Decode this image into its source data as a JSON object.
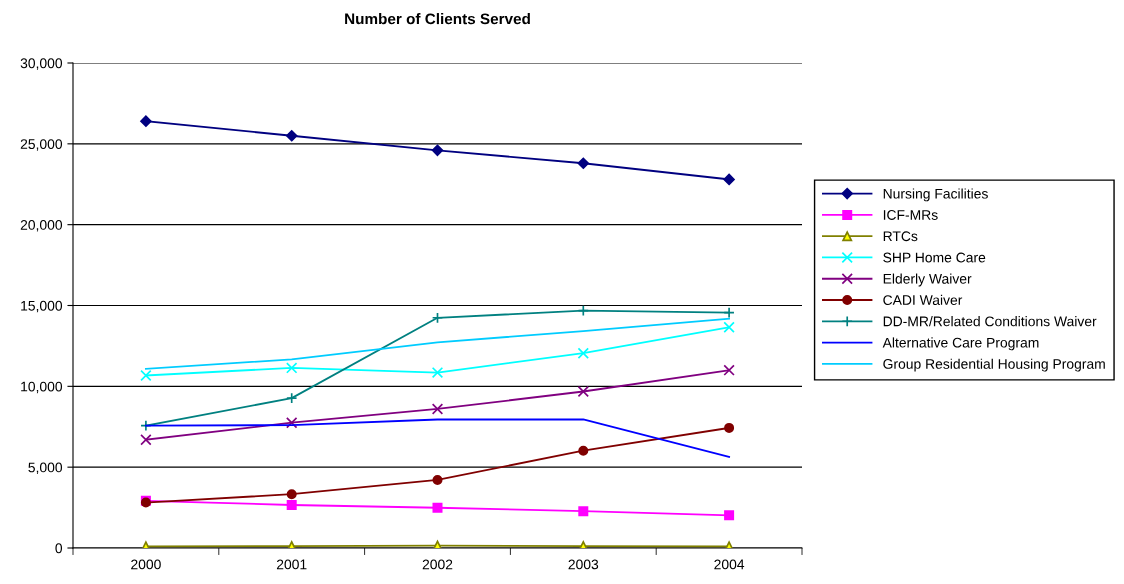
{
  "chart_data": {
    "type": "line",
    "title": "Number of Clients Served",
    "categories": [
      "2000",
      "2001",
      "2002",
      "2003",
      "2004"
    ],
    "ylim": [
      0,
      30000
    ],
    "yticks": [
      {
        "value": 0,
        "label": "0"
      },
      {
        "value": 5000,
        "label": "5,000"
      },
      {
        "value": 10000,
        "label": "10,000"
      },
      {
        "value": 15000,
        "label": "15,000"
      },
      {
        "value": 20000,
        "label": "20,000"
      },
      {
        "value": 25000,
        "label": "25,000"
      },
      {
        "value": 30000,
        "label": "30,000"
      }
    ],
    "grid": "y",
    "legend": "right",
    "series": [
      {
        "name": "Nursing Facilities",
        "color": "#000080",
        "marker": "diamond",
        "values": [
          26400,
          25500,
          24600,
          23800,
          22800
        ]
      },
      {
        "name": "ICF-MRs",
        "color": "#ff00ff",
        "marker": "square",
        "values": [
          2920,
          2660,
          2490,
          2280,
          2020
        ]
      },
      {
        "name": "RTCs",
        "color": "#808000",
        "marker": "triangle",
        "values": [
          100,
          120,
          150,
          120,
          100
        ]
      },
      {
        "name": "SHP Home Care",
        "color": "#00ffff",
        "marker": "x",
        "values": [
          10670,
          11140,
          10850,
          12050,
          13650
        ]
      },
      {
        "name": "Elderly Waiver",
        "color": "#800080",
        "marker": "cross",
        "values": [
          6700,
          7750,
          8600,
          9680,
          11000
        ]
      },
      {
        "name": "CADI Waiver",
        "color": "#800000",
        "marker": "circle",
        "values": [
          2810,
          3330,
          4210,
          6020,
          7430
        ]
      },
      {
        "name": "DD-MR/Related Conditions Waiver",
        "color": "#008080",
        "marker": "plus",
        "values": [
          7570,
          9270,
          14240,
          14680,
          14560
        ]
      },
      {
        "name": "Alternative Care Program",
        "color": "#0000ff",
        "marker": "none",
        "values": [
          7570,
          7600,
          7950,
          7950,
          5640
        ]
      },
      {
        "name": "Group Residential Housing Program",
        "color": "#00ccff",
        "marker": "none",
        "values": [
          11080,
          11670,
          12720,
          13420,
          14180
        ]
      }
    ]
  }
}
